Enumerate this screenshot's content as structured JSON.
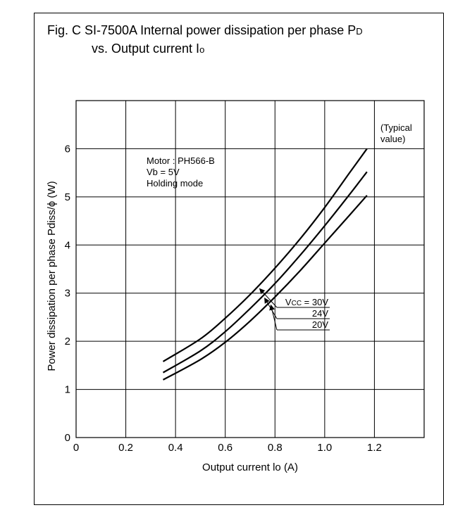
{
  "figure": {
    "title_part1": "Fig. C  SI-7500A  Internal power dissipation per phase P",
    "title_sub1": "D",
    "title_part2": "vs. Output current I",
    "title_sub2": "o"
  },
  "chart_data": {
    "type": "line",
    "xlabel": "Output current lo (A)",
    "ylabel": "Power dissipation per phase Pdiss/ϕ (W)",
    "xlim": [
      0,
      1.4
    ],
    "ylim": [
      0,
      7
    ],
    "x_ticks": [
      0,
      0.2,
      0.4,
      0.6,
      0.8,
      1.0,
      1.2
    ],
    "x_tick_labels": [
      "0",
      "0.2",
      "0.4",
      "0.6",
      "0.8",
      "1.0",
      "1.2"
    ],
    "y_ticks": [
      0,
      1,
      2,
      3,
      4,
      5,
      6
    ],
    "y_tick_labels": [
      "0",
      "1",
      "2",
      "3",
      "4",
      "5",
      "6"
    ],
    "grid": true,
    "annotation_typical": [
      "(Typical",
      "value)"
    ],
    "conditions": [
      "Motor : PH566-B",
      "Vb = 5V",
      "Holding mode"
    ],
    "series": [
      {
        "name": "Vcc = 30V",
        "label_main": "V",
        "label_sub": "CC",
        "label_rest": " = 30V",
        "x": [
          0.35,
          0.5,
          0.6,
          0.7,
          0.8,
          0.9,
          1.0,
          1.1,
          1.17
        ],
        "values": [
          1.58,
          2.05,
          2.48,
          2.97,
          3.52,
          4.12,
          4.78,
          5.5,
          6.0
        ]
      },
      {
        "name": "24V",
        "label_main": "24V",
        "label_sub": "",
        "label_rest": "",
        "x": [
          0.35,
          0.5,
          0.6,
          0.7,
          0.8,
          0.9,
          1.0,
          1.1,
          1.17
        ],
        "values": [
          1.35,
          1.8,
          2.2,
          2.68,
          3.2,
          3.78,
          4.4,
          5.05,
          5.52
        ]
      },
      {
        "name": "20V",
        "label_main": "20V",
        "label_sub": "",
        "label_rest": "",
        "x": [
          0.35,
          0.5,
          0.6,
          0.7,
          0.8,
          0.9,
          1.0,
          1.1,
          1.17
        ],
        "values": [
          1.2,
          1.62,
          1.98,
          2.42,
          2.92,
          3.46,
          4.04,
          4.62,
          5.03
        ]
      }
    ]
  }
}
